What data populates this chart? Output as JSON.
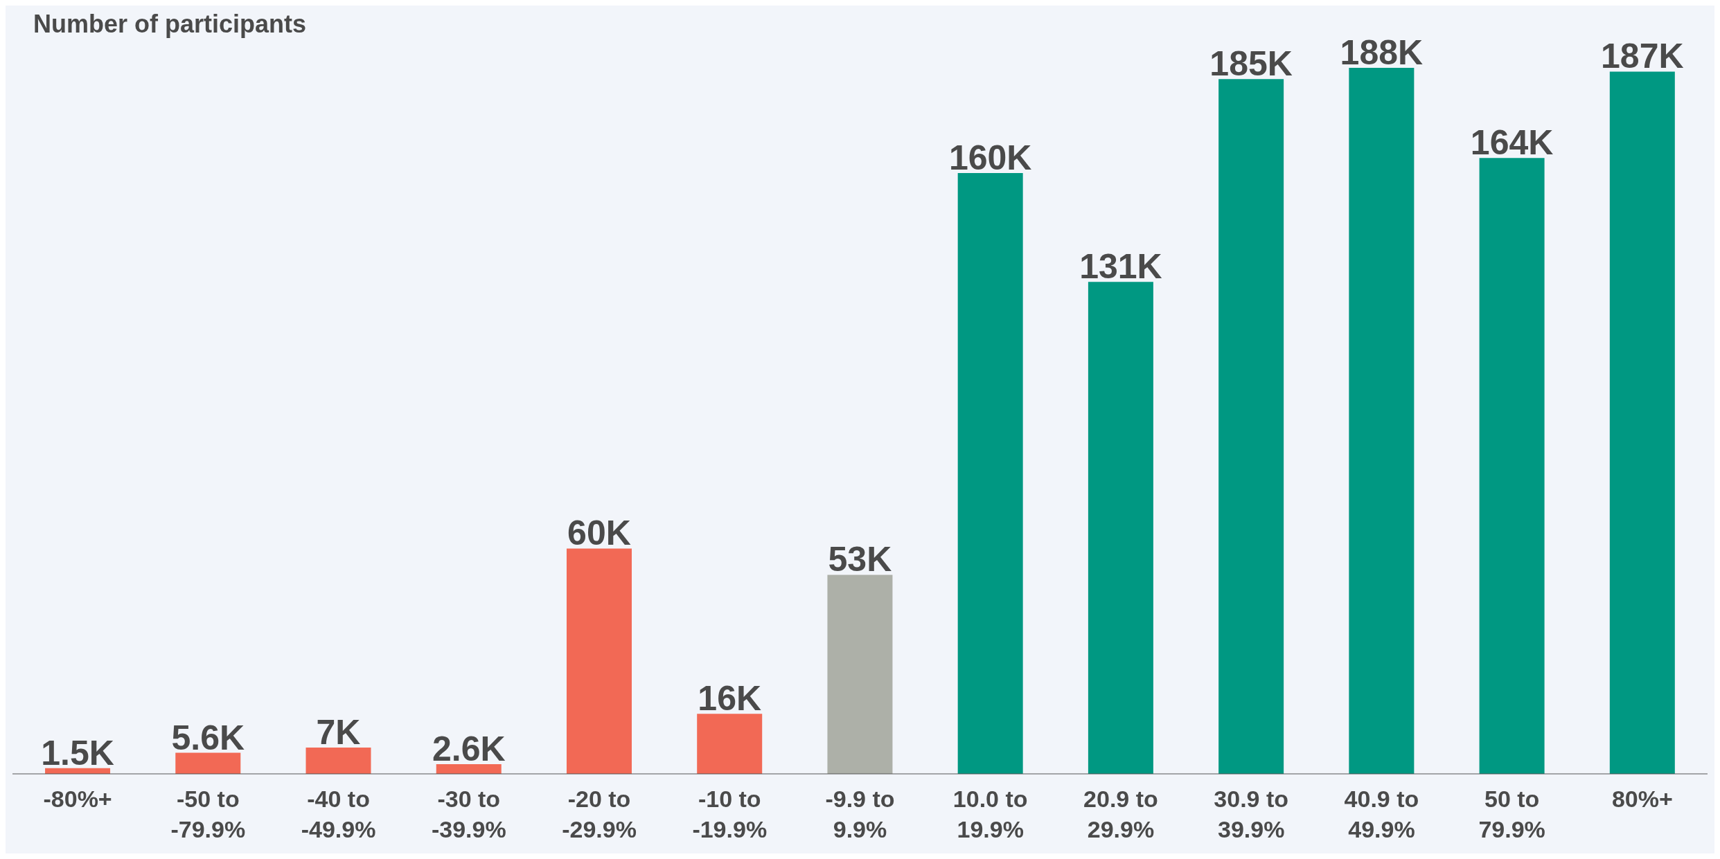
{
  "chart_data": {
    "type": "bar",
    "title": "Number of participants",
    "categories": [
      "-80%+",
      "-50 to -79.9%",
      "-40 to -49.9%",
      "-30 to -39.9%",
      "-20 to -29.9%",
      "-10 to -19.9%",
      "-9.9 to 9.9%",
      "10.0 to 19.9%",
      "20.9 to 29.9%",
      "30.9 to 39.9%",
      "40.9 to 49.9%",
      "50 to 79.9%",
      "80%+"
    ],
    "values": [
      1.5,
      5.6,
      7,
      2.6,
      60,
      16,
      53,
      160,
      131,
      185,
      188,
      164,
      187
    ],
    "value_labels": [
      "1.5K",
      "5.6K",
      "7K",
      "2.6K",
      "60K",
      "16K",
      "53K",
      "160K",
      "131K",
      "185K",
      "188K",
      "164K",
      "187K"
    ],
    "colors": [
      "#f26955",
      "#f26955",
      "#f26955",
      "#f26955",
      "#f26955",
      "#f26955",
      "#adb0a8",
      "#009882",
      "#009882",
      "#009882",
      "#009882",
      "#009882",
      "#009882"
    ]
  }
}
